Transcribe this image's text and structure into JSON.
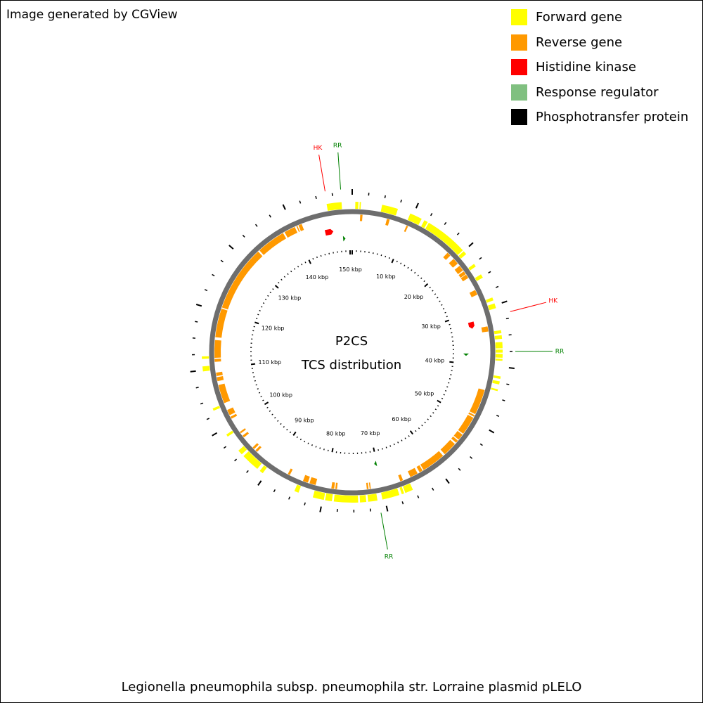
{
  "credit": "Image generated by CGView",
  "title_line1": "P2CS",
  "title_line2": "TCS distribution",
  "caption": "Legionella pneumophila subsp. pneumophila str. Lorraine plasmid pLELO",
  "legend": [
    {
      "label": "Forward gene",
      "color": "#ffff00",
      "icon": "forward-gene-swatch"
    },
    {
      "label": "Reverse gene",
      "color": "#ff9900",
      "icon": "reverse-gene-swatch"
    },
    {
      "label": "Histidine kinase",
      "color": "#ff0000",
      "icon": "histidine-kinase-swatch"
    },
    {
      "label": "Response regulator",
      "color": "#80c080",
      "icon": "response-regulator-swatch"
    },
    {
      "label": "Phosphotransfer protein",
      "color": "#000000",
      "icon": "phosphotransfer-protein-swatch"
    }
  ],
  "map": {
    "total_kbp": 150.5,
    "tick_labels": [
      "10 kbp",
      "20 kbp",
      "30 kbp",
      "40 kbp",
      "50 kbp",
      "60 kbp",
      "70 kbp",
      "80 kbp",
      "90 kbp",
      "100 kbp",
      "110 kbp",
      "120 kbp",
      "130 kbp",
      "140 kbp",
      "150 kbp"
    ],
    "forward_genes": [
      [
        0.5,
        1.0
      ],
      [
        1.2,
        1.4
      ],
      [
        4.8,
        7.4
      ],
      [
        9.5,
        11.5
      ],
      [
        12.0,
        12.6
      ],
      [
        12.8,
        19.8
      ],
      [
        20.0,
        20.6
      ],
      [
        22.6,
        23.1
      ],
      [
        24.6,
        25.2
      ],
      [
        28.7,
        29.2
      ],
      [
        29.7,
        30.5
      ],
      [
        34.1,
        34.6
      ],
      [
        34.9,
        35.5
      ],
      [
        36.0,
        37.0
      ],
      [
        37.2,
        37.7
      ],
      [
        37.9,
        38.5
      ],
      [
        38.7,
        39.0
      ],
      [
        41.5,
        41.9
      ],
      [
        42.3,
        42.8
      ],
      [
        43.6,
        43.9
      ],
      [
        65.3,
        66.6
      ],
      [
        66.8,
        67.2
      ],
      [
        67.6,
        70.4
      ],
      [
        71.2,
        72.7
      ],
      [
        73.0,
        74.0
      ],
      [
        74.3,
        78.2
      ],
      [
        78.5,
        79.6
      ],
      [
        79.8,
        81.6
      ],
      [
        84.0,
        84.7
      ],
      [
        90.5,
        91.1
      ],
      [
        91.6,
        94.6
      ],
      [
        95.0,
        95.8
      ],
      [
        98.6,
        99.0
      ],
      [
        103.3,
        103.7
      ],
      [
        109.8,
        110.6
      ],
      [
        111.8,
        112.2
      ],
      [
        146.4,
        148.8
      ]
    ],
    "reverse_genes": [
      [
        1.4,
        1.8
      ],
      [
        6.1,
        6.6
      ],
      [
        9.7,
        10.0
      ],
      [
        18.3,
        19.0
      ],
      [
        19.8,
        20.9
      ],
      [
        21.4,
        22.4
      ],
      [
        22.6,
        23.2
      ],
      [
        23.3,
        24.0
      ],
      [
        26.4,
        27.3
      ],
      [
        33.1,
        34.0
      ],
      [
        44.3,
        48.8
      ],
      [
        49.0,
        49.3
      ],
      [
        49.5,
        52.8
      ],
      [
        53.0,
        54.1
      ],
      [
        54.3,
        54.8
      ],
      [
        55.1,
        57.6
      ],
      [
        58.0,
        62.2
      ],
      [
        62.4,
        63.0
      ],
      [
        63.4,
        64.8
      ],
      [
        66.2,
        66.7
      ],
      [
        72.0,
        72.2
      ],
      [
        72.4,
        72.7
      ],
      [
        77.9,
        78.2
      ],
      [
        78.4,
        78.9
      ],
      [
        81.7,
        82.8
      ],
      [
        83.1,
        84.0
      ],
      [
        86.5,
        86.9
      ],
      [
        93.5,
        93.9
      ],
      [
        94.2,
        94.6
      ],
      [
        96.9,
        97.3
      ],
      [
        97.8,
        98.1
      ],
      [
        100.8,
        101.2
      ],
      [
        101.5,
        102.5
      ],
      [
        103.8,
        107.1
      ],
      [
        107.8,
        108.5
      ],
      [
        108.7,
        109.3
      ],
      [
        111.2,
        111.7
      ],
      [
        111.9,
        115.0
      ],
      [
        115.5,
        120.6
      ],
      [
        120.8,
        132.5
      ],
      [
        132.8,
        137.9
      ],
      [
        138.2,
        140.2
      ],
      [
        140.5,
        140.7
      ],
      [
        140.9,
        141.5
      ]
    ],
    "hk_genes": [
      [
        145.2,
        146.8
      ],
      [
        31.7,
        33.0
      ]
    ],
    "rr_genes": [
      [
        148.6,
        149.1
      ],
      [
        37.9,
        38.4
      ],
      [
        70.1,
        70.6
      ]
    ],
    "pt_genes": [],
    "annotations": [
      {
        "label": "HK",
        "pos": 146.5,
        "color": "#ff0000"
      },
      {
        "label": "RR",
        "pos": 148.8,
        "color": "#008000"
      },
      {
        "label": "HK",
        "pos": 31.6,
        "color": "#ff0000"
      },
      {
        "label": "RR",
        "pos": 37.5,
        "color": "#008000"
      },
      {
        "label": "RR",
        "pos": 71.0,
        "color": "#008000"
      }
    ]
  }
}
